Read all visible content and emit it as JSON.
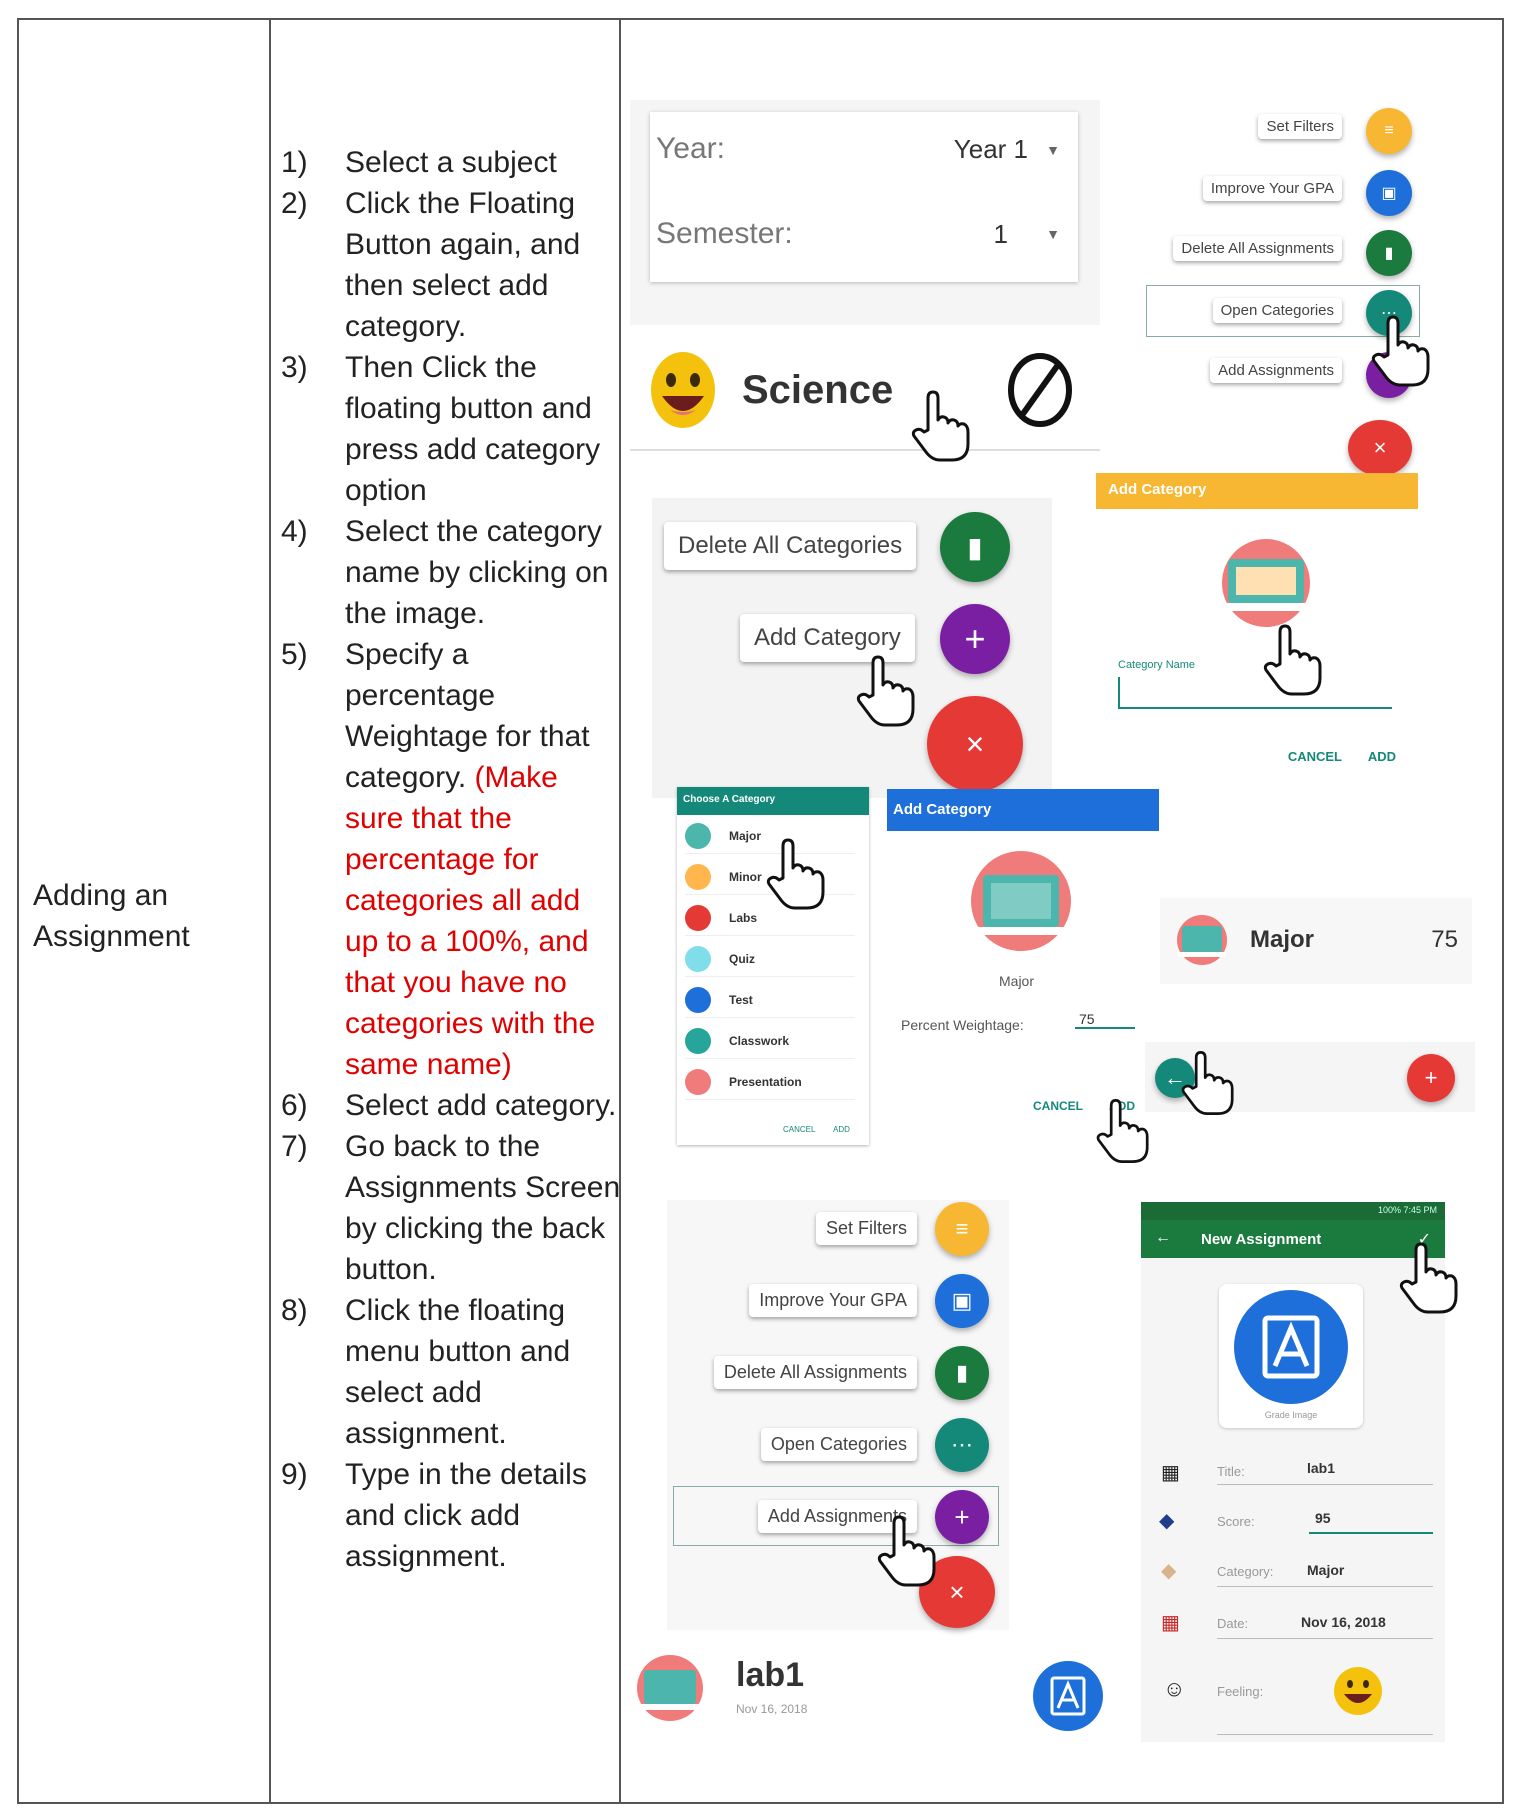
{
  "doc": {
    "row_title": "Adding an Assignment",
    "steps": [
      {
        "num": "1)",
        "text": "Select a subject"
      },
      {
        "num": "2)",
        "text": "Click the Floating Button again, and then select add category."
      },
      {
        "num": "3)",
        "text": "Then Click the floating button and press add category option"
      },
      {
        "num": "4)",
        "text": "Select the category name by clicking on the image."
      },
      {
        "num": "5)",
        "text": "Specify a percentage Weightage for that category.",
        "note": "(Make sure that the percentage for categories all add up to a 100%, and that you have no categories with the same name)"
      },
      {
        "num": "6)",
        "text": "Select add category."
      },
      {
        "num": "7)",
        "text": "Go back to the Assignments Screen by clicking the back button."
      },
      {
        "num": "8)",
        "text": "Click the floating menu button and select add assignment."
      },
      {
        "num": "9)",
        "text": "Type in the details and click add assignment."
      }
    ]
  },
  "year_card": {
    "year_label": "Year:",
    "year_value": "Year 1",
    "semester_label": "Semester:",
    "semester_value": "1"
  },
  "subject": {
    "name": "Science"
  },
  "menu1": {
    "items": [
      "Set Filters",
      "Improve Your GPA",
      "Delete All Assignments",
      "Open Categories",
      "Add Assignments"
    ]
  },
  "cat_menu": {
    "delete_label": "Delete All Categories",
    "add_label": "Add Category"
  },
  "add_cat_yellow": {
    "title": "Add Category",
    "field_label": "Category Name",
    "cancel": "CANCEL",
    "add": "ADD"
  },
  "choose_cat": {
    "title": "Choose A Category",
    "items": [
      "Major",
      "Minor",
      "Labs",
      "Quiz",
      "Test",
      "Classwork",
      "Presentation"
    ],
    "cancel": "CANCEL",
    "add": "ADD"
  },
  "add_cat_blue": {
    "title": "Add Category",
    "category": "Major",
    "weight_label": "Percent Weightage:",
    "weight_value": "75",
    "cancel": "CANCEL",
    "add": "ADD"
  },
  "major_row": {
    "name": "Major",
    "value": "75"
  },
  "menu2": {
    "items": [
      "Set Filters",
      "Improve Your GPA",
      "Delete All Assignments",
      "Open Categories",
      "Add Assignments"
    ]
  },
  "assignment_row": {
    "title": "lab1",
    "date": "Nov 16, 2018"
  },
  "new_assignment": {
    "status_right": "100% 7:45 PM",
    "title": "New Assignment",
    "grade_image_label": "Grade Image",
    "title_label": "Title:",
    "title_value": "lab1",
    "score_label": "Score:",
    "score_value": "95",
    "category_label": "Category:",
    "category_value": "Major",
    "date_label": "Date:",
    "date_value": "Nov 16, 2018",
    "feeling_label": "Feeling:"
  },
  "colors": {
    "red_note": "#e00000",
    "yellow": "#f7b733",
    "blue": "#1e6fd9",
    "green": "#1b7a3d",
    "teal": "#14897a",
    "purple": "#7b1fa2",
    "fab_red": "#e53935"
  }
}
